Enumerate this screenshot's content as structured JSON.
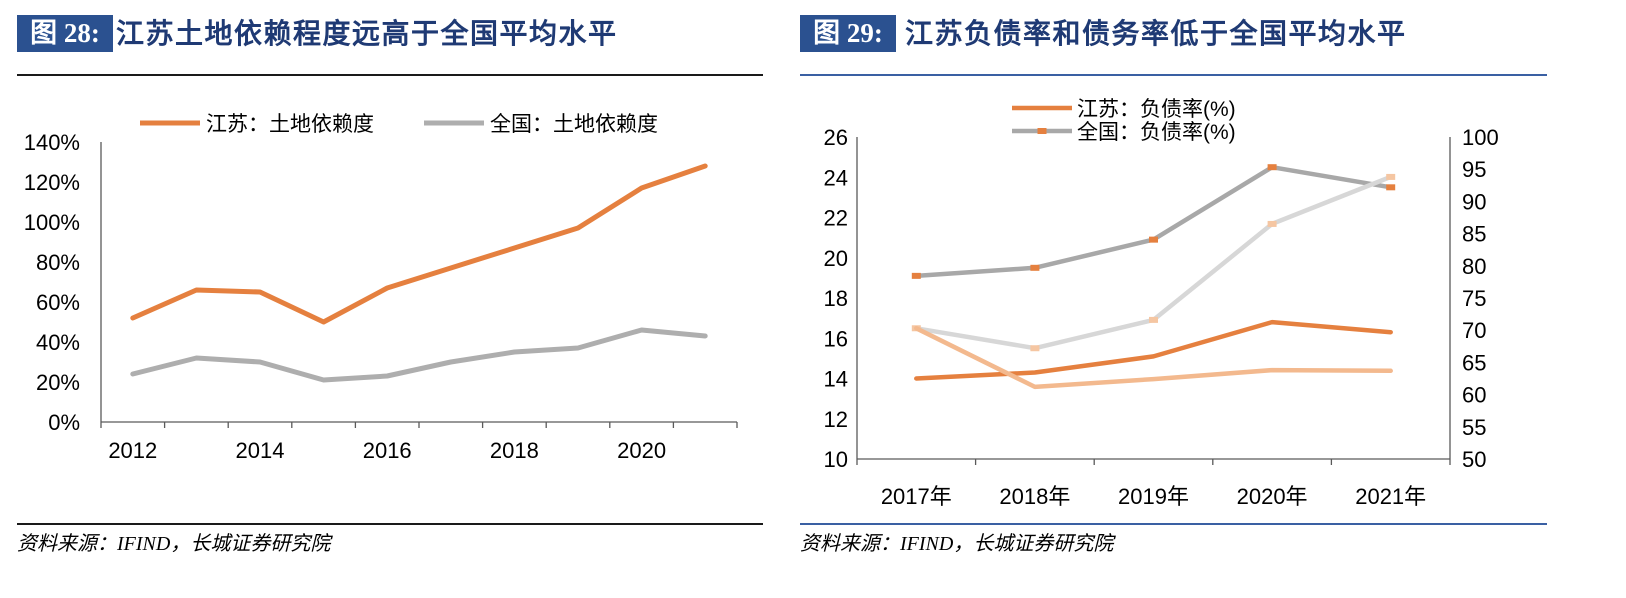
{
  "theme": {
    "label_box": "#2B5190",
    "title_text": "#1F3A74",
    "rule_left": "#1A1A1A",
    "rule_right": "#3A60A3"
  },
  "chart_data": [
    {
      "type": "line",
      "figure_label": "图 28:",
      "title": "江苏土地依赖程度远高于全国平均水平",
      "source": "资料来源：IFIND，长城证券研究院",
      "x": [
        2012,
        2013,
        2014,
        2015,
        2016,
        2017,
        2018,
        2019,
        2020,
        2021
      ],
      "xtick_labels": [
        "2012",
        "2014",
        "2016",
        "2018",
        "2020"
      ],
      "ylim": [
        0,
        140
      ],
      "yticks": [
        0,
        20,
        40,
        60,
        80,
        100,
        120,
        140
      ],
      "ytick_labels": [
        "0%",
        "20%",
        "40%",
        "60%",
        "80%",
        "100%",
        "120%",
        "140%"
      ],
      "series": [
        {
          "name": "江苏：土地依赖度",
          "color": "#E5803F",
          "values": [
            52,
            66,
            65,
            50,
            67,
            77,
            87,
            97,
            117,
            128
          ]
        },
        {
          "name": "全国：土地依赖度",
          "color": "#AEAEAE",
          "values": [
            24,
            32,
            30,
            21,
            23,
            30,
            35,
            37,
            46,
            43
          ]
        }
      ]
    },
    {
      "type": "line",
      "figure_label": "图 29:",
      "title": "江苏负债率和债务率低于全国平均水平",
      "source": "资料来源：IFIND，长城证券研究院",
      "categories": [
        "2017年",
        "2018年",
        "2019年",
        "2020年",
        "2021年"
      ],
      "ylim": [
        10,
        26
      ],
      "yticks": [
        10,
        12,
        14,
        16,
        18,
        20,
        22,
        24,
        26
      ],
      "y2lim": [
        50,
        100
      ],
      "y2ticks": [
        50,
        55,
        60,
        65,
        70,
        75,
        80,
        85,
        90,
        95,
        100
      ],
      "series": [
        {
          "name": "江苏：负债率(%)",
          "color": "#E5803F",
          "secondary_axis": false,
          "values": [
            14.0,
            14.3,
            15.1,
            16.8,
            16.3
          ]
        },
        {
          "name": "全国：负债率(%)",
          "color": "#A8A8A8",
          "marker_color": "#E5803F",
          "secondary_axis": false,
          "values": [
            19.1,
            19.5,
            20.9,
            24.5,
            23.5
          ]
        },
        {
          "color": "#D7D7D7",
          "marker_color": "#F5C6A2",
          "secondary_axis": true,
          "values": [
            70.3,
            67.2,
            71.6,
            86.5,
            93.8
          ]
        },
        {
          "color": "#F3B98E",
          "secondary_axis": true,
          "values": [
            70.3,
            61.2,
            62.4,
            63.8,
            63.7
          ]
        }
      ]
    }
  ]
}
